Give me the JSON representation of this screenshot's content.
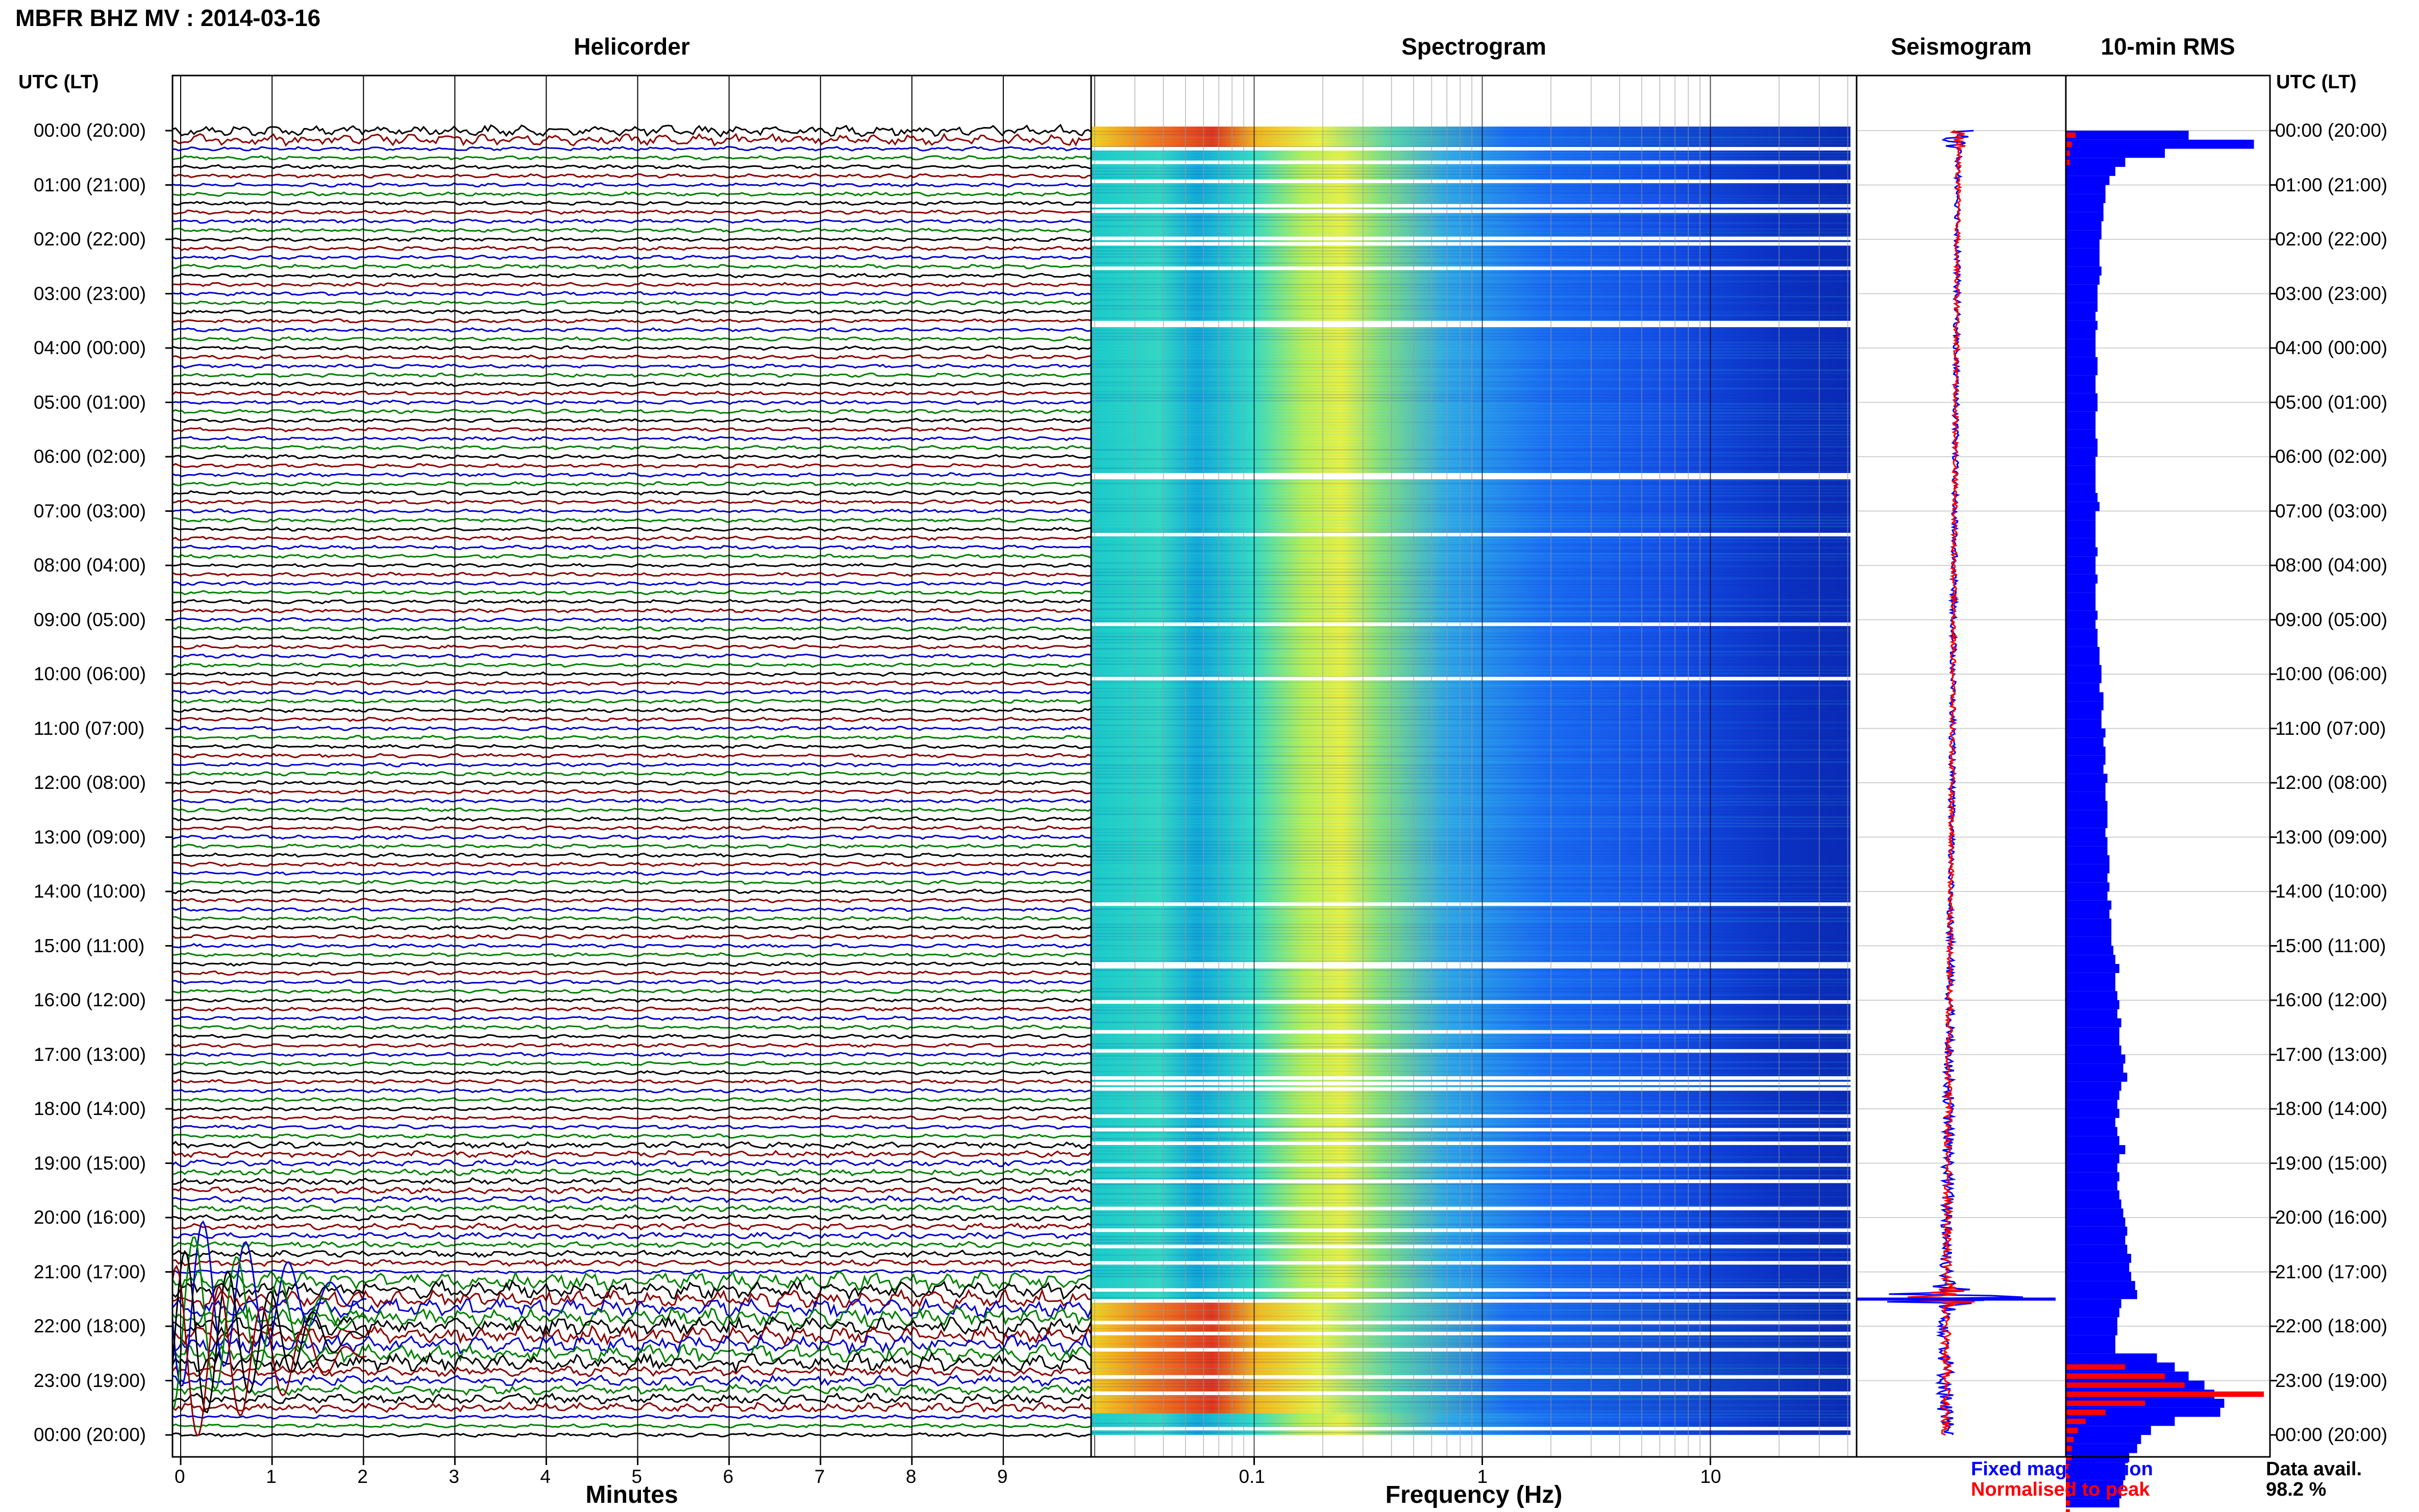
{
  "title": "MBFR BHZ MV : 2014-03-16",
  "panels": {
    "helicorder": "Helicorder",
    "spectrogram": "Spectrogram",
    "seismogram": "Seismogram",
    "rms": "10-min RMS"
  },
  "utc_header": "UTC (LT)",
  "time_labels": [
    "00:00 (20:00)",
    "01:00 (21:00)",
    "02:00 (22:00)",
    "03:00 (23:00)",
    "04:00 (00:00)",
    "05:00 (01:00)",
    "06:00 (02:00)",
    "07:00 (03:00)",
    "08:00 (04:00)",
    "09:00 (05:00)",
    "10:00 (06:00)",
    "11:00 (07:00)",
    "12:00 (08:00)",
    "13:00 (09:00)",
    "14:00 (10:00)",
    "15:00 (11:00)",
    "16:00 (12:00)",
    "17:00 (13:00)",
    "18:00 (14:00)",
    "19:00 (15:00)",
    "20:00 (16:00)",
    "21:00 (17:00)",
    "22:00 (18:00)",
    "23:00 (19:00)",
    "00:00 (20:00)"
  ],
  "helicorder_axis": {
    "label": "Minutes",
    "ticks": [
      "0",
      "1",
      "2",
      "3",
      "4",
      "5",
      "6",
      "7",
      "8",
      "9"
    ]
  },
  "spectrogram_axis": {
    "label": "Frequency (Hz)",
    "ticks": [
      "0.1",
      "1",
      "10"
    ],
    "scale": "log"
  },
  "legend": {
    "fixed": "Fixed magnification",
    "fixed_color": "#0000ff",
    "normalised": "Normalised to peak",
    "normalised_color": "#ff0000",
    "avail_label": "Data avail.",
    "avail_value": "98.2 %"
  },
  "trace_colors": [
    "#000000",
    "#8b0000",
    "#0000cd",
    "#008000"
  ],
  "chart_data": {
    "type": "heatmap",
    "title": "MBFR BHZ MV : 2014-03-16",
    "hours": 24,
    "rms_blue": [
      0.62,
      0.95,
      0.5,
      0.3,
      0.25,
      0.22,
      0.2,
      0.2,
      0.19,
      0.19,
      0.18,
      0.18,
      0.17,
      0.17,
      0.17,
      0.18,
      0.17,
      0.16,
      0.16,
      0.16,
      0.15,
      0.16,
      0.15,
      0.15,
      0.15,
      0.16,
      0.16,
      0.15,
      0.15,
      0.16,
      0.16,
      0.15,
      0.15,
      0.15,
      0.16,
      0.16,
      0.15,
      0.15,
      0.15,
      0.15,
      0.16,
      0.17,
      0.15,
      0.15,
      0.15,
      0.15,
      0.16,
      0.15,
      0.15,
      0.16,
      0.15,
      0.15,
      0.15,
      0.16,
      0.15,
      0.16,
      0.16,
      0.17,
      0.17,
      0.18,
      0.18,
      0.17,
      0.19,
      0.19,
      0.18,
      0.18,
      0.2,
      0.19,
      0.2,
      0.2,
      0.19,
      0.21,
      0.2,
      0.2,
      0.21,
      0.21,
      0.21,
      0.2,
      0.21,
      0.21,
      0.22,
      0.22,
      0.21,
      0.22,
      0.21,
      0.23,
      0.22,
      0.23,
      0.23,
      0.23,
      0.24,
      0.25,
      0.27,
      0.25,
      0.25,
      0.26,
      0.27,
      0.26,
      0.28,
      0.27,
      0.27,
      0.28,
      0.3,
      0.29,
      0.31,
      0.28,
      0.27,
      0.26,
      0.27,
      0.25,
      0.26,
      0.27,
      0.3,
      0.27,
      0.26,
      0.27,
      0.26,
      0.27,
      0.28,
      0.29,
      0.3,
      0.31,
      0.3,
      0.31,
      0.33,
      0.32,
      0.33,
      0.35,
      0.36,
      0.28,
      0.27,
      0.26,
      0.26,
      0.25,
      0.25,
      0.46,
      0.55,
      0.62,
      0.7,
      0.75,
      0.8,
      0.78,
      0.55,
      0.43,
      0.38,
      0.36,
      0.32,
      0.3,
      0.3,
      0.29,
      0.28,
      0.27
    ],
    "rms_red": [
      0.05,
      0.03,
      0.02,
      0.02,
      0,
      0,
      0,
      0,
      0,
      0,
      0,
      0,
      0,
      0,
      0,
      0,
      0,
      0,
      0,
      0,
      0,
      0,
      0,
      0,
      0,
      0,
      0,
      0,
      0,
      0,
      0,
      0,
      0,
      0,
      0,
      0,
      0,
      0,
      0,
      0,
      0,
      0,
      0,
      0,
      0,
      0,
      0,
      0,
      0,
      0,
      0,
      0,
      0,
      0,
      0,
      0,
      0,
      0,
      0,
      0,
      0,
      0,
      0,
      0,
      0,
      0,
      0,
      0,
      0,
      0,
      0,
      0,
      0,
      0,
      0,
      0,
      0,
      0,
      0,
      0,
      0,
      0,
      0,
      0,
      0,
      0,
      0,
      0,
      0,
      0,
      0,
      0,
      0,
      0,
      0,
      0,
      0,
      0,
      0,
      0,
      0,
      0,
      0,
      0,
      0,
      0,
      0,
      0,
      0,
      0,
      0,
      0,
      0,
      0,
      0,
      0,
      0,
      0,
      0,
      0,
      0,
      0,
      0,
      0,
      0,
      0,
      0,
      0,
      0,
      0,
      0,
      0,
      0,
      0,
      0,
      0,
      0.3,
      0.5,
      0.6,
      1.0,
      0.4,
      0.2,
      0.1,
      0.06,
      0.04,
      0.03,
      0.03,
      0.02,
      0.02,
      0.02,
      0.02,
      0.02,
      0.02,
      0.02,
      0.02,
      0.02
    ],
    "gaps_hours": [
      0.3,
      0.55,
      0.9,
      1.35,
      1.45,
      1.95,
      2.05,
      2.5,
      3.5,
      3.55,
      6.3,
      6.35,
      7.4,
      9.05,
      10.05,
      14.2,
      15.3,
      15.35,
      16.0,
      16.55,
      16.9,
      17.4,
      17.5,
      17.6,
      18.1,
      18.35,
      18.6,
      19.0,
      19.3,
      19.8,
      20.2,
      20.5,
      20.8,
      21.3,
      21.5,
      21.9,
      22.1,
      22.4,
      22.9,
      23.2,
      23.85
    ]
  }
}
